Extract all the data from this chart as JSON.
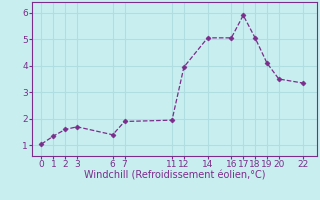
{
  "x": [
    0,
    1,
    2,
    3,
    6,
    7,
    11,
    12,
    14,
    16,
    17,
    18,
    19,
    20,
    22
  ],
  "y": [
    1.05,
    1.35,
    1.6,
    1.7,
    1.4,
    1.9,
    1.95,
    3.95,
    5.05,
    5.05,
    5.9,
    5.05,
    4.1,
    3.5,
    3.35
  ],
  "xticks": [
    0,
    1,
    2,
    3,
    6,
    7,
    11,
    12,
    14,
    16,
    17,
    18,
    19,
    20,
    22
  ],
  "yticks": [
    1,
    2,
    3,
    4,
    5,
    6
  ],
  "ylim": [
    0.6,
    6.4
  ],
  "xlim": [
    -0.8,
    23.2
  ],
  "xlabel": "Windchill (Refroidissement éolien,°C)",
  "line_color": "#7b2d8b",
  "marker": "D",
  "marker_size": 2.5,
  "bg_color": "#c8eef0",
  "grid_color": "#b0dde0",
  "xlabel_color": "#7b2d8b",
  "tick_color": "#7b2d8b",
  "tick_fontsize": 6.5,
  "xlabel_fontsize": 7
}
